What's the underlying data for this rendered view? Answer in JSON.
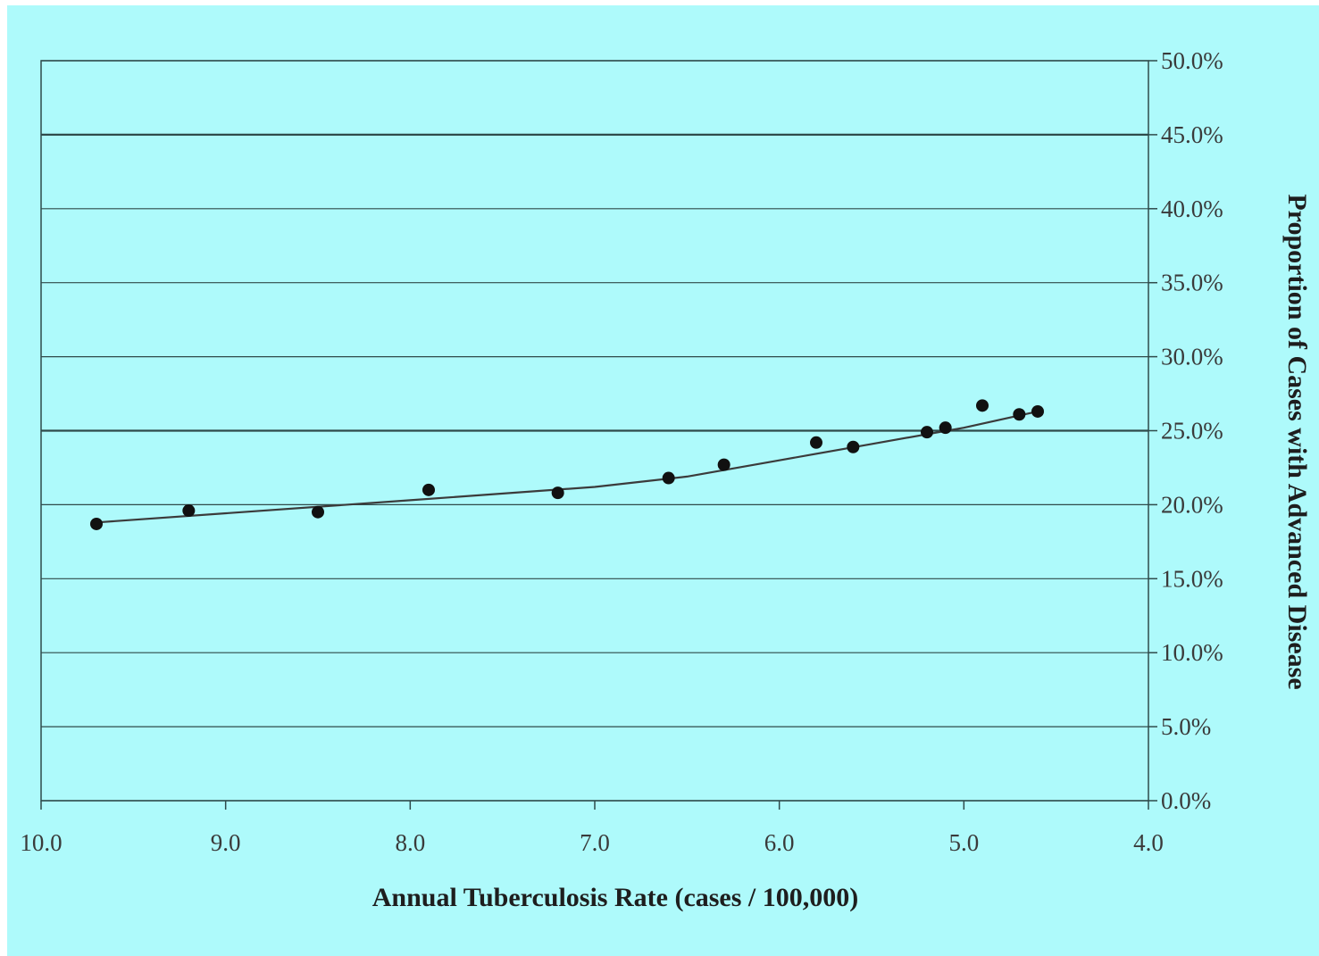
{
  "chart_data": {
    "type": "scatter",
    "xlabel": "Annual Tuberculosis Rate (cases / 100,000)",
    "ylabel": "Proportion of Cases with Advanced Disease",
    "xlim": [
      10.0,
      4.0
    ],
    "x_reversed": true,
    "ylim": [
      0.0,
      50.0
    ],
    "y_axis_side": "right",
    "grid": "horizontal",
    "x_tick_labels": [
      "10.0",
      "9.0",
      "8.0",
      "7.0",
      "6.0",
      "5.0",
      "4.0"
    ],
    "y_tick_labels": [
      "0.0%",
      "5.0%",
      "10.0%",
      "15.0%",
      "20.0%",
      "25.0%",
      "30.0%",
      "35.0%",
      "40.0%",
      "45.0%",
      "50.0%"
    ],
    "series": [
      {
        "points": [
          {
            "x": 9.7,
            "y": 18.7
          },
          {
            "x": 9.2,
            "y": 19.6
          },
          {
            "x": 8.5,
            "y": 19.5
          },
          {
            "x": 7.9,
            "y": 21.0
          },
          {
            "x": 7.2,
            "y": 20.8
          },
          {
            "x": 6.6,
            "y": 21.8
          },
          {
            "x": 6.3,
            "y": 22.7
          },
          {
            "x": 5.8,
            "y": 24.2
          },
          {
            "x": 5.6,
            "y": 23.9
          },
          {
            "x": 5.2,
            "y": 24.9
          },
          {
            "x": 5.1,
            "y": 25.2
          },
          {
            "x": 4.9,
            "y": 26.7
          },
          {
            "x": 4.7,
            "y": 26.1
          },
          {
            "x": 4.6,
            "y": 26.3
          }
        ]
      }
    ],
    "trendline": [
      {
        "x": 9.7,
        "y": 18.8
      },
      {
        "x": 8.0,
        "y": 20.3
      },
      {
        "x": 7.0,
        "y": 21.2
      },
      {
        "x": 6.5,
        "y": 21.9
      },
      {
        "x": 6.0,
        "y": 23.0
      },
      {
        "x": 5.5,
        "y": 24.1
      },
      {
        "x": 5.0,
        "y": 25.2
      },
      {
        "x": 4.6,
        "y": 26.3
      }
    ],
    "colors": {
      "background": "#aefafb",
      "points": "#111111",
      "trendline": "#3b3b3b",
      "gridline": "#2f4a4a"
    }
  }
}
